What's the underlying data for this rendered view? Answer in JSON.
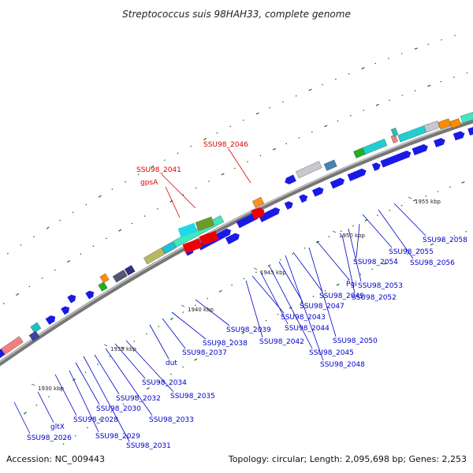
{
  "title": "Streptococcus suis 98HAH33, complete genome",
  "footer": {
    "accession": "Accession: NC_009443",
    "summary": "Topology: circular; Length: 2,095,698 bp; Genes: 2,253"
  },
  "scale_ticks": [
    "1930 kbp",
    "1935 kbp",
    "1940 kbp",
    "1945 kbp",
    "1950 kbp",
    "1955 kbp"
  ],
  "labels_upper": [
    "SSU98_2046",
    "SSU98_2041",
    "gpsA"
  ],
  "labels_lower": [
    "SSU98_2026",
    "gltX",
    "SSU98_2028",
    "SSU98_2029",
    "SSU98_2030",
    "SSU98_2031",
    "SSU98_2032",
    "SSU98_2033",
    "SSU98_2034",
    "SSU98_2035",
    "dut",
    "SSU98_2037",
    "SSU98_2038",
    "SSU98_2039",
    "SSU98_2042",
    "SSU98_2043",
    "SSU98_2044",
    "SSU98_2045",
    "SSU98_2047",
    "SSU98_2048",
    "SSU98_2049",
    "SSU98_2050",
    "Pgi",
    "SSU98_2052",
    "SSU98_2053",
    "SSU98_2054",
    "SSU98_2055",
    "SSU98_2056",
    "SSU98_2058"
  ],
  "colors": {
    "backbone": "#8a8a8a",
    "gene_blue": "#1a1ae6",
    "gene_red": "#ee0000",
    "gc_dots": "#1a7a1a",
    "label_blue": "#0000cc",
    "label_red": "#dd0000"
  }
}
